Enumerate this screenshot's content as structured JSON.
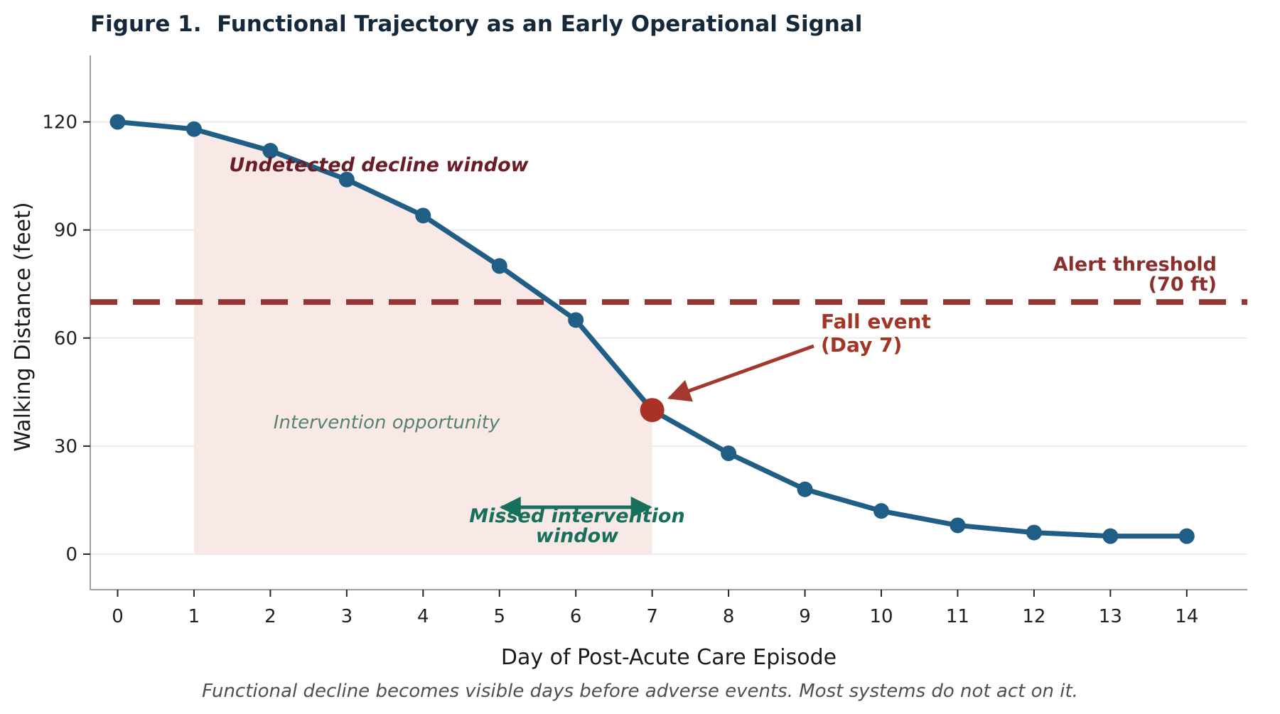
{
  "figure": {
    "title": "Figure 1.  Functional Trajectory as an Early Operational Signal",
    "caption": "Functional decline becomes visible days before adverse events. Most systems do not act on it.",
    "title_color": "#15293b",
    "caption_color": "#4f4f4f"
  },
  "chart_data": {
    "type": "line",
    "title": "Figure 1.  Functional Trajectory as an Early Operational Signal",
    "x": [
      0,
      1,
      2,
      3,
      4,
      5,
      6,
      7,
      8,
      9,
      10,
      11,
      12,
      13,
      14
    ],
    "values": [
      120,
      118,
      112,
      104,
      94,
      80,
      65,
      40,
      28,
      18,
      12,
      8,
      6,
      5,
      5
    ],
    "xlabel": "Day of Post-Acute Care Episode",
    "ylabel": "Walking Distance (feet)",
    "yticks": [
      0,
      30,
      60,
      90,
      120
    ],
    "xlim": [
      -0.36,
      14.8
    ],
    "ylim": [
      -10,
      138.5
    ],
    "grid": "horizontal-light",
    "legend": "none",
    "line_color": "#215e86",
    "marker_color": "#215e86",
    "threshold": {
      "value": 70,
      "label_line1": "Alert threshold",
      "label_line2": "(70 ft)",
      "line_color": "#943634",
      "label_color": "#8b2f2d"
    },
    "fall_event": {
      "day": 7,
      "value": 40,
      "label_line1": "Fall event",
      "label_line2": "(Day 7)",
      "point_color": "#a93226",
      "label_color": "#a33524",
      "arrow_color": "#a3392c"
    },
    "shaded_region": {
      "from_day": 1,
      "to_day": 7,
      "fill": "#f8e9e7",
      "label": "Intervention opportunity",
      "label_color": "#54836f"
    },
    "undetected_window": {
      "label": "Undetected decline window",
      "color": "#6b1d27"
    },
    "missed_window": {
      "label_line1": "Missed intervention",
      "label_line2": "window",
      "color": "#17705c",
      "arrow_from_day": 5,
      "arrow_to_day": 7
    }
  }
}
